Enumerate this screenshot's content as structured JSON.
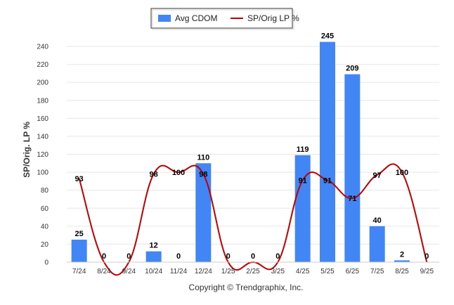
{
  "chart_data": {
    "type": "bar",
    "categories": [
      "7/24",
      "8/24",
      "9/24",
      "10/24",
      "11/24",
      "12/24",
      "1/25",
      "2/25",
      "3/25",
      "4/25",
      "5/25",
      "6/25",
      "7/25",
      "8/25",
      "9/25"
    ],
    "series": [
      {
        "name": "Avg CDOM",
        "type": "bar",
        "color": "#4285f4",
        "values": [
          25,
          0,
          0,
          12,
          0,
          110,
          0,
          0,
          0,
          119,
          245,
          209,
          40,
          2,
          0
        ]
      },
      {
        "name": "SP/Orig LP %",
        "type": "line",
        "color": "#c00000",
        "values": [
          93,
          0,
          0,
          98,
          100,
          98,
          0,
          0,
          0,
          91,
          91,
          71,
          97,
          100,
          0
        ]
      }
    ],
    "ylabel": "SP/Orig. LP %",
    "ylim": [
      0,
      240
    ],
    "yticks": [
      0,
      20,
      40,
      60,
      80,
      100,
      120,
      140,
      160,
      180,
      200,
      220,
      240
    ],
    "grid": true,
    "legend": "top-center"
  },
  "footer": {
    "copyright": "Copyright © Trendgraphix, Inc."
  }
}
